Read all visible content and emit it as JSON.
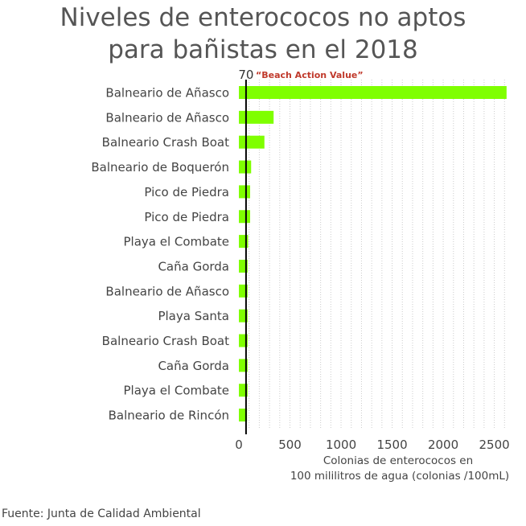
{
  "title_line1": "Niveles de enterococos no aptos",
  "title_line2": "para bañistas en el 2018",
  "source": "Fuente: Junta de Calidad Ambiental",
  "colors": {
    "bar": "#7fff00",
    "grid": "#cccccc",
    "reference_line": "#000000",
    "reference_label": "#c0392b"
  },
  "chart_data": {
    "type": "bar",
    "orientation": "horizontal",
    "title": "Niveles de enterococos no aptos para bañistas en el 2018",
    "xlabel_line1": "Colonias de enterococos en",
    "xlabel_line2": "100 mililitros de agua (colonias /100mL)",
    "categories": [
      "Balneario de Añasco",
      "Balneario de Añasco",
      "Balneario Crash Boat",
      "Balneario de Boquerón",
      "Pico de Piedra",
      "Pico de Piedra",
      "Playa el Combate",
      "Caña Gorda",
      "Balneario de Añasco",
      "Playa Santa",
      "Balneario Crash Boat",
      "Caña Gorda",
      "Playa el Combate",
      "Balneario de Rincón"
    ],
    "values": [
      2620,
      340,
      250,
      120,
      110,
      110,
      90,
      85,
      85,
      85,
      85,
      85,
      85,
      80
    ],
    "xlim": [
      0,
      2700
    ],
    "xticks": [
      "0",
      "500",
      "1000",
      "1500",
      "2000",
      "2500"
    ],
    "xtick_values": [
      0,
      500,
      1000,
      1500,
      2000,
      2500
    ],
    "grid": "vertical dotted",
    "reference": {
      "value": 70,
      "value_label": "70",
      "label": "“Beach Action Value”"
    }
  }
}
